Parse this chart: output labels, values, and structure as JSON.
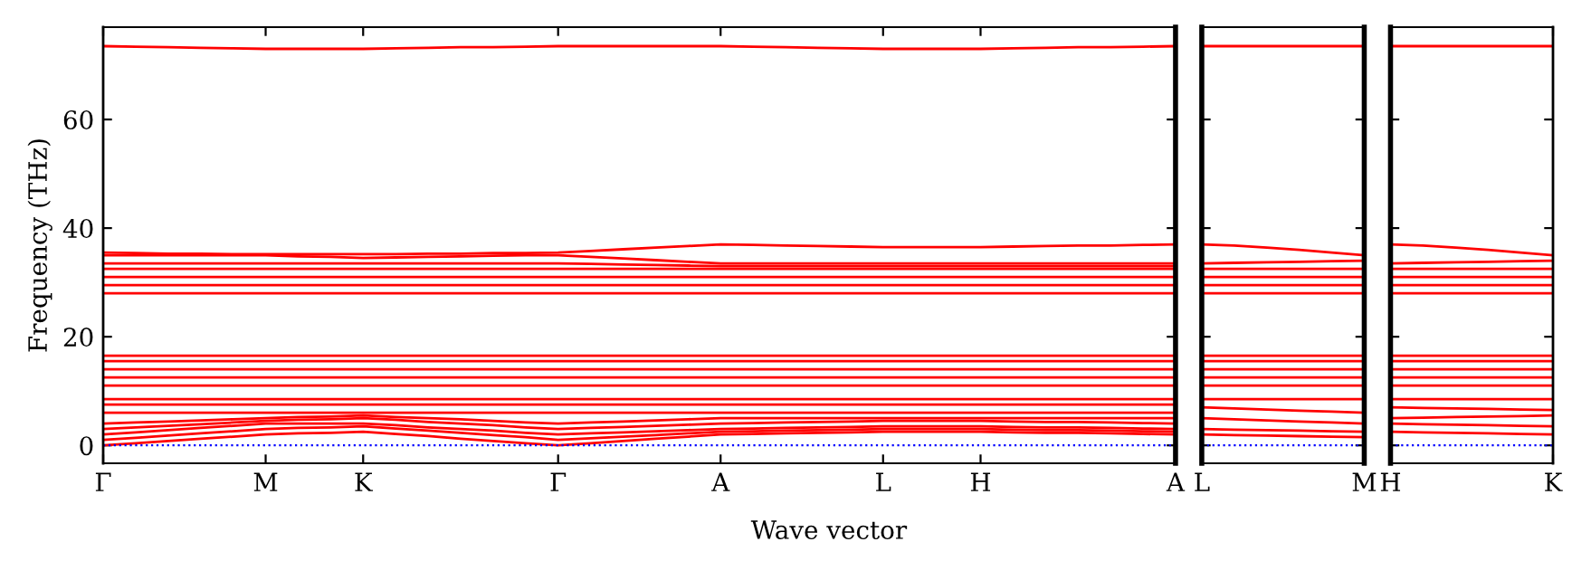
{
  "chart_data": [
    {
      "type": "line",
      "ylabel": "Frequency (THz)",
      "xlabel": "Wave vector",
      "categories": [
        "Γ",
        null,
        null,
        null,
        null,
        "M",
        null,
        null,
        "K",
        null,
        null,
        null,
        null,
        null,
        "Γ",
        null,
        null,
        null,
        null,
        "A",
        null,
        null,
        null,
        null,
        "L",
        null,
        null,
        "H",
        null,
        null,
        null,
        null,
        null,
        "A"
      ],
      "ylim": [
        -3.3,
        77
      ],
      "yticks": [
        0,
        20,
        40,
        60
      ],
      "grid": false,
      "legend": false,
      "line_style": "solid",
      "marker": "none",
      "ref_lines": [
        {
          "axis": "y",
          "value": 0,
          "color": "#0000ff",
          "line_style": "dotted"
        }
      ],
      "series": [
        {
          "color": "#ff0000",
          "values": [
            0,
            0.4,
            0.8,
            1.2,
            1.6,
            2,
            2.2,
            2.3,
            2.5,
            2.1,
            1.7,
            1.2,
            0.8,
            0.4,
            0,
            0.4,
            0.8,
            1.2,
            1.6,
            2,
            2.1,
            2.2,
            2.3,
            2.4,
            2.5,
            2.5,
            2.5,
            2.5,
            2.4,
            2.3,
            2.3,
            2.2,
            2.1,
            2
          ]
        },
        {
          "color": "#ff0000",
          "values": [
            1,
            1.4,
            1.8,
            2.2,
            2.6,
            3,
            3.2,
            3.3,
            3.5,
            3.1,
            2.7,
            2.3,
            1.9,
            1.5,
            1,
            1.3,
            1.6,
            1.9,
            2.2,
            2.5,
            2.6,
            2.7,
            2.8,
            2.9,
            3,
            3,
            3,
            3,
            2.9,
            2.8,
            2.8,
            2.7,
            2.6,
            2.5
          ]
        },
        {
          "color": "#ff0000",
          "values": [
            2,
            2.4,
            2.8,
            3.2,
            3.6,
            4,
            4,
            4,
            4,
            3.7,
            3.3,
            3,
            2.7,
            2.3,
            2,
            2.2,
            2.4,
            2.6,
            2.8,
            3,
            3.1,
            3.2,
            3.3,
            3.4,
            3.5,
            3.5,
            3.5,
            3.5,
            3.4,
            3.3,
            3.3,
            3.2,
            3.1,
            3
          ]
        },
        {
          "color": "#ff0000",
          "values": [
            3,
            3.3,
            3.6,
            3.9,
            4.2,
            4.5,
            4.7,
            4.8,
            5,
            4.7,
            4.3,
            4,
            3.7,
            3.3,
            3,
            3.2,
            3.4,
            3.6,
            3.8,
            4,
            4.1,
            4.2,
            4.3,
            4.4,
            4.5,
            4.5,
            4.5,
            4.5,
            4.4,
            4.3,
            4.3,
            4.2,
            4.1,
            4
          ]
        },
        {
          "color": "#ff0000",
          "values": [
            4,
            4.2,
            4.4,
            4.6,
            4.8,
            5,
            5.2,
            5.3,
            5.5,
            5.2,
            5,
            4.8,
            4.5,
            4.2,
            4,
            4.2,
            4.4,
            4.6,
            4.8,
            5,
            5,
            5,
            5,
            5,
            5,
            5,
            5,
            5,
            5,
            5,
            5,
            5,
            5,
            5
          ]
        },
        {
          "color": "#ff0000",
          "values": [
            6,
            6,
            6,
            6,
            6,
            6,
            6,
            6,
            6,
            6,
            6,
            6,
            6,
            6,
            6,
            6,
            6,
            6,
            6,
            6,
            6,
            6,
            6,
            6,
            6,
            6,
            6,
            6,
            6,
            6,
            6,
            6,
            6,
            6
          ]
        },
        {
          "color": "#ff0000",
          "values": [
            7.5,
            7.5,
            7.5,
            7.5,
            7.5,
            7.5,
            7.5,
            7.5,
            7.5,
            7.5,
            7.5,
            7.5,
            7.5,
            7.5,
            7.5,
            7.5,
            7.5,
            7.5,
            7.5,
            7.5,
            7.5,
            7.5,
            7.5,
            7.5,
            7.5,
            7.5,
            7.5,
            7.5,
            7.5,
            7.5,
            7.5,
            7.5,
            7.5,
            7.5
          ]
        },
        {
          "color": "#ff0000",
          "values": [
            8.5,
            8.5,
            8.5,
            8.5,
            8.5,
            8.5,
            8.5,
            8.5,
            8.5,
            8.5,
            8.5,
            8.5,
            8.5,
            8.5,
            8.5,
            8.5,
            8.5,
            8.5,
            8.5,
            8.5,
            8.5,
            8.5,
            8.5,
            8.5,
            8.5,
            8.5,
            8.5,
            8.5,
            8.5,
            8.5,
            8.5,
            8.5,
            8.5,
            8.5
          ]
        },
        {
          "color": "#ff0000",
          "values": [
            11,
            11,
            11,
            11,
            11,
            11,
            11,
            11,
            11,
            11,
            11,
            11,
            11,
            11,
            11,
            11,
            11,
            11,
            11,
            11,
            11,
            11,
            11,
            11,
            11,
            11,
            11,
            11,
            11,
            11,
            11,
            11,
            11,
            11
          ]
        },
        {
          "color": "#ff0000",
          "values": [
            12.5,
            12.5,
            12.5,
            12.5,
            12.5,
            12.5,
            12.5,
            12.5,
            12.5,
            12.5,
            12.5,
            12.5,
            12.5,
            12.5,
            12.5,
            12.5,
            12.5,
            12.5,
            12.5,
            12.5,
            12.5,
            12.5,
            12.5,
            12.5,
            12.5,
            12.5,
            12.5,
            12.5,
            12.5,
            12.5,
            12.5,
            12.5,
            12.5,
            12.5
          ]
        },
        {
          "color": "#ff0000",
          "values": [
            14,
            14,
            14,
            14,
            14,
            14,
            14,
            14,
            14,
            14,
            14,
            14,
            14,
            14,
            14,
            14,
            14,
            14,
            14,
            14,
            14,
            14,
            14,
            14,
            14,
            14,
            14,
            14,
            14,
            14,
            14,
            14,
            14,
            14
          ]
        },
        {
          "color": "#ff0000",
          "values": [
            15.5,
            15.5,
            15.5,
            15.5,
            15.5,
            15.5,
            15.5,
            15.5,
            15.5,
            15.5,
            15.5,
            15.5,
            15.5,
            15.5,
            15.5,
            15.5,
            15.5,
            15.5,
            15.5,
            15.5,
            15.5,
            15.5,
            15.5,
            15.5,
            15.5,
            15.5,
            15.5,
            15.5,
            15.5,
            15.5,
            15.5,
            15.5,
            15.5,
            15.5
          ]
        },
        {
          "color": "#ff0000",
          "values": [
            16.5,
            16.5,
            16.5,
            16.5,
            16.5,
            16.5,
            16.5,
            16.5,
            16.5,
            16.5,
            16.5,
            16.5,
            16.5,
            16.5,
            16.5,
            16.5,
            16.5,
            16.5,
            16.5,
            16.5,
            16.5,
            16.5,
            16.5,
            16.5,
            16.5,
            16.5,
            16.5,
            16.5,
            16.5,
            16.5,
            16.5,
            16.5,
            16.5,
            16.5
          ]
        },
        {
          "color": "#ff0000",
          "values": [
            28,
            28,
            28,
            28,
            28,
            28,
            28,
            28,
            28,
            28,
            28,
            28,
            28,
            28,
            28,
            28,
            28,
            28,
            28,
            28,
            28,
            28,
            28,
            28,
            28,
            28,
            28,
            28,
            28,
            28,
            28,
            28,
            28,
            28
          ]
        },
        {
          "color": "#ff0000",
          "values": [
            29.5,
            29.5,
            29.5,
            29.5,
            29.5,
            29.5,
            29.5,
            29.5,
            29.5,
            29.5,
            29.5,
            29.5,
            29.5,
            29.5,
            29.5,
            29.5,
            29.5,
            29.5,
            29.5,
            29.5,
            29.5,
            29.5,
            29.5,
            29.5,
            29.5,
            29.5,
            29.5,
            29.5,
            29.5,
            29.5,
            29.5,
            29.5,
            29.5,
            29.5
          ]
        },
        {
          "color": "#ff0000",
          "values": [
            31,
            31,
            31,
            31,
            31,
            31,
            31,
            31,
            31,
            31,
            31,
            31,
            31,
            31,
            31,
            31,
            31,
            31,
            31,
            31,
            31,
            31,
            31,
            31,
            31,
            31,
            31,
            31,
            31,
            31,
            31,
            31,
            31,
            31
          ]
        },
        {
          "color": "#ff0000",
          "values": [
            32.5,
            32.5,
            32.5,
            32.5,
            32.5,
            32.5,
            32.5,
            32.5,
            32.5,
            32.5,
            32.5,
            32.5,
            32.5,
            32.5,
            32.5,
            32.5,
            32.5,
            32.5,
            32.5,
            32.5,
            32.5,
            32.5,
            32.5,
            32.5,
            32.5,
            32.5,
            32.5,
            32.5,
            32.5,
            32.5,
            32.5,
            32.5,
            32.5,
            32.5
          ]
        },
        {
          "color": "#ff0000",
          "values": [
            33.5,
            33.5,
            33.5,
            33.5,
            33.5,
            33.5,
            33.5,
            33.5,
            33.5,
            33.5,
            33.5,
            33.5,
            33.5,
            33.5,
            33.5,
            33.4,
            33.3,
            33.2,
            33.1,
            33,
            33,
            33,
            33,
            33,
            33,
            33,
            33,
            33,
            33,
            33,
            33,
            33,
            33,
            33
          ]
        },
        {
          "color": "#ff0000",
          "values": [
            35,
            35,
            35,
            35,
            35,
            35,
            34.8,
            34.7,
            34.5,
            34.6,
            34.7,
            34.8,
            34.9,
            35,
            35,
            34.7,
            34.4,
            34.1,
            33.8,
            33.5,
            33.5,
            33.5,
            33.5,
            33.5,
            33.5,
            33.5,
            33.5,
            33.5,
            33.5,
            33.5,
            33.5,
            33.5,
            33.5,
            33.5
          ]
        },
        {
          "color": "#ff0000",
          "values": [
            35.5,
            35.4,
            35.3,
            35.3,
            35.2,
            35.2,
            35.2,
            35.2,
            35.2,
            35.2,
            35.3,
            35.3,
            35.4,
            35.4,
            35.5,
            35.8,
            36.1,
            36.4,
            36.7,
            37,
            36.9,
            36.8,
            36.7,
            36.6,
            36.5,
            36.5,
            36.5,
            36.5,
            36.6,
            36.7,
            36.8,
            36.8,
            36.9,
            37
          ]
        },
        {
          "color": "#ff0000",
          "values": [
            73.5,
            73.4,
            73.3,
            73.2,
            73.1,
            73,
            73,
            73,
            73,
            73.1,
            73.2,
            73.3,
            73.3,
            73.4,
            73.5,
            73.5,
            73.5,
            73.5,
            73.5,
            73.5,
            73.4,
            73.3,
            73.2,
            73.1,
            73,
            73,
            73,
            73,
            73.1,
            73.2,
            73.3,
            73.3,
            73.4,
            73.5
          ]
        }
      ]
    },
    {
      "type": "line",
      "categories": [
        "L",
        null,
        null,
        null,
        null,
        "M"
      ],
      "ylim": [
        -3.3,
        77
      ],
      "yticks": [
        0,
        20,
        40,
        60
      ],
      "tick_labels": "x",
      "grid": false,
      "legend": false,
      "line_style": "solid",
      "marker": "none",
      "ref_lines": [
        {
          "axis": "y",
          "value": 0,
          "color": "#0000ff",
          "line_style": "dotted"
        }
      ],
      "series": [
        {
          "color": "#ff0000",
          "values": [
            2,
            1.9,
            1.8,
            1.7,
            1.6,
            1.5
          ]
        },
        {
          "color": "#ff0000",
          "values": [
            3,
            2.9,
            2.8,
            2.7,
            2.6,
            2.5
          ]
        },
        {
          "color": "#ff0000",
          "values": [
            5,
            4.8,
            4.6,
            4.4,
            4.2,
            4
          ]
        },
        {
          "color": "#ff0000",
          "values": [
            7,
            6.8,
            6.6,
            6.4,
            6.2,
            6
          ]
        },
        {
          "color": "#ff0000",
          "values": [
            8.5,
            8.5,
            8.5,
            8.5,
            8.5,
            8.5
          ]
        },
        {
          "color": "#ff0000",
          "values": [
            11,
            11,
            11,
            11,
            11,
            11
          ]
        },
        {
          "color": "#ff0000",
          "values": [
            12.5,
            12.5,
            12.5,
            12.5,
            12.5,
            12.5
          ]
        },
        {
          "color": "#ff0000",
          "values": [
            14,
            14,
            14,
            14,
            14,
            14
          ]
        },
        {
          "color": "#ff0000",
          "values": [
            15.5,
            15.5,
            15.5,
            15.5,
            15.5,
            15.5
          ]
        },
        {
          "color": "#ff0000",
          "values": [
            16.5,
            16.5,
            16.5,
            16.5,
            16.5,
            16.5
          ]
        },
        {
          "color": "#ff0000",
          "values": [
            28,
            28,
            28,
            28,
            28,
            28
          ]
        },
        {
          "color": "#ff0000",
          "values": [
            29.5,
            29.5,
            29.5,
            29.5,
            29.5,
            29.5
          ]
        },
        {
          "color": "#ff0000",
          "values": [
            31,
            31,
            31,
            31,
            31,
            31
          ]
        },
        {
          "color": "#ff0000",
          "values": [
            32.5,
            32.5,
            32.5,
            32.5,
            32.5,
            32.5
          ]
        },
        {
          "color": "#ff0000",
          "values": [
            33.5,
            33.6,
            33.7,
            33.8,
            33.9,
            34
          ]
        },
        {
          "color": "#ff0000",
          "values": [
            37,
            36.8,
            36.4,
            36,
            35.5,
            35
          ]
        },
        {
          "color": "#ff0000",
          "values": [
            73.5,
            73.5,
            73.5,
            73.5,
            73.5,
            73.5
          ]
        }
      ]
    },
    {
      "type": "line",
      "categories": [
        "H",
        null,
        null,
        null,
        null,
        "K"
      ],
      "ylim": [
        -3.3,
        77
      ],
      "yticks": [
        0,
        20,
        40,
        60
      ],
      "tick_labels": "x",
      "grid": false,
      "legend": false,
      "line_style": "solid",
      "marker": "none",
      "ref_lines": [
        {
          "axis": "y",
          "value": 0,
          "color": "#0000ff",
          "line_style": "dotted"
        }
      ],
      "series": [
        {
          "color": "#ff0000",
          "values": [
            2.5,
            2.4,
            2.3,
            2.2,
            2.1,
            2
          ]
        },
        {
          "color": "#ff0000",
          "values": [
            4,
            3.9,
            3.8,
            3.7,
            3.6,
            3.5
          ]
        },
        {
          "color": "#ff0000",
          "values": [
            5,
            5.1,
            5.2,
            5.3,
            5.4,
            5.5
          ]
        },
        {
          "color": "#ff0000",
          "values": [
            7,
            6.9,
            6.8,
            6.7,
            6.6,
            6.5
          ]
        },
        {
          "color": "#ff0000",
          "values": [
            8.5,
            8.5,
            8.5,
            8.5,
            8.5,
            8.5
          ]
        },
        {
          "color": "#ff0000",
          "values": [
            11,
            11,
            11,
            11,
            11,
            11
          ]
        },
        {
          "color": "#ff0000",
          "values": [
            12.5,
            12.5,
            12.5,
            12.5,
            12.5,
            12.5
          ]
        },
        {
          "color": "#ff0000",
          "values": [
            14,
            14,
            14,
            14,
            14,
            14
          ]
        },
        {
          "color": "#ff0000",
          "values": [
            15.5,
            15.5,
            15.5,
            15.5,
            15.5,
            15.5
          ]
        },
        {
          "color": "#ff0000",
          "values": [
            16.5,
            16.5,
            16.5,
            16.5,
            16.5,
            16.5
          ]
        },
        {
          "color": "#ff0000",
          "values": [
            28,
            28,
            28,
            28,
            28,
            28
          ]
        },
        {
          "color": "#ff0000",
          "values": [
            29.5,
            29.5,
            29.5,
            29.5,
            29.5,
            29.5
          ]
        },
        {
          "color": "#ff0000",
          "values": [
            31,
            31,
            31,
            31,
            31,
            31
          ]
        },
        {
          "color": "#ff0000",
          "values": [
            32.5,
            32.5,
            32.5,
            32.5,
            32.5,
            32.5
          ]
        },
        {
          "color": "#ff0000",
          "values": [
            33.5,
            33.6,
            33.7,
            33.8,
            33.9,
            34
          ]
        },
        {
          "color": "#ff0000",
          "values": [
            37,
            36.8,
            36.4,
            36,
            35.5,
            35
          ]
        },
        {
          "color": "#ff0000",
          "values": [
            73.5,
            73.5,
            73.5,
            73.5,
            73.5,
            73.5
          ]
        }
      ]
    }
  ]
}
